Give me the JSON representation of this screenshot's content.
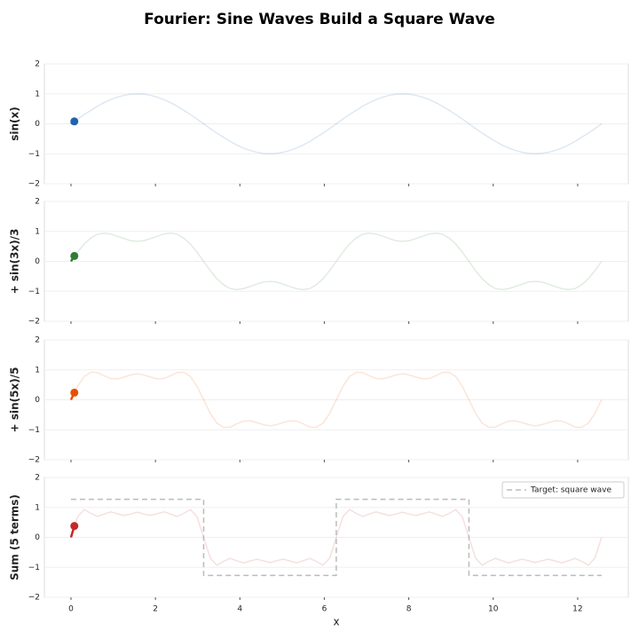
{
  "title": "Fourier: Sine Waves Build a Square Wave",
  "chart_data": [
    {
      "type": "line",
      "ylabel": "sin(x)",
      "color": "#1f63b0",
      "xlim": [
        -0.63,
        13.2
      ],
      "ylim": [
        -2,
        2
      ],
      "yticks": [
        {
          "value": -2,
          "label": "−2"
        },
        {
          "value": -1,
          "label": "−1"
        },
        0,
        1,
        2
      ],
      "grid": true,
      "x": [
        0,
        0.157,
        0.314,
        0.471,
        0.628,
        0.785,
        0.942,
        1.1,
        1.257,
        1.414,
        1.571,
        1.728,
        1.885,
        2.042,
        2.199,
        2.356,
        2.513,
        2.67,
        2.827,
        2.985,
        3.142,
        3.299,
        3.456,
        3.613,
        3.77,
        3.927,
        4.084,
        4.241,
        4.398,
        4.555,
        4.712,
        4.869,
        5.027,
        5.184,
        5.341,
        5.498,
        5.655,
        5.812,
        5.969,
        6.126,
        6.283,
        6.44,
        6.597,
        6.754,
        6.912,
        7.069,
        7.226,
        7.383,
        7.54,
        7.697,
        7.854,
        8.011,
        8.168,
        8.325,
        8.482,
        8.639,
        8.796,
        8.954,
        9.111,
        9.268,
        9.425,
        9.582,
        9.739,
        9.896,
        10.053,
        10.21,
        10.367,
        10.524,
        10.681,
        10.838,
        10.996,
        11.153,
        11.31,
        11.467,
        11.624,
        11.781,
        11.938,
        12.095,
        12.252,
        12.409,
        12.566
      ],
      "series": [
        {
          "values": [
            0,
            0.16,
            0.31,
            0.45,
            0.59,
            0.71,
            0.81,
            0.89,
            0.95,
            0.99,
            1,
            0.99,
            0.95,
            0.89,
            0.81,
            0.71,
            0.59,
            0.45,
            0.31,
            0.16,
            0,
            -0.16,
            -0.31,
            -0.45,
            -0.59,
            -0.71,
            -0.81,
            -0.89,
            -0.95,
            -0.99,
            -1,
            -0.99,
            -0.95,
            -0.89,
            -0.81,
            -0.71,
            -0.59,
            -0.45,
            -0.31,
            -0.16,
            0,
            0.16,
            0.31,
            0.45,
            0.59,
            0.71,
            0.81,
            0.89,
            0.95,
            0.99,
            1,
            0.99,
            0.95,
            0.89,
            0.81,
            0.71,
            0.59,
            0.45,
            0.31,
            0.16,
            0,
            -0.16,
            -0.31,
            -0.45,
            -0.59,
            -0.71,
            -0.81,
            -0.89,
            -0.95,
            -0.99,
            -1,
            -0.99,
            -0.95,
            -0.89,
            -0.81,
            -0.71,
            -0.59,
            -0.45,
            -0.31,
            -0.16,
            0
          ]
        }
      ],
      "highlight": {
        "x": [
          0,
          0.08
        ],
        "values": [
          0,
          0.08
        ]
      }
    },
    {
      "type": "line",
      "ylabel": "+ sin(3x)/3",
      "color": "#2e7d32",
      "xlim": [
        -0.63,
        13.2
      ],
      "ylim": [
        -2,
        2
      ],
      "yticks": [
        {
          "value": -2,
          "label": "−2"
        },
        {
          "value": -1,
          "label": "−1"
        },
        0,
        1,
        2
      ],
      "grid": true,
      "x": [
        0,
        0.157,
        0.314,
        0.471,
        0.628,
        0.785,
        0.942,
        1.1,
        1.257,
        1.414,
        1.571,
        1.728,
        1.885,
        2.042,
        2.199,
        2.356,
        2.513,
        2.67,
        2.827,
        2.985,
        3.142,
        3.299,
        3.456,
        3.613,
        3.77,
        3.927,
        4.084,
        4.241,
        4.398,
        4.555,
        4.712,
        4.869,
        5.027,
        5.184,
        5.341,
        5.498,
        5.655,
        5.812,
        5.969,
        6.126,
        6.283,
        6.44,
        6.597,
        6.754,
        6.912,
        7.069,
        7.226,
        7.383,
        7.54,
        7.697,
        7.854,
        8.011,
        8.168,
        8.325,
        8.482,
        8.639,
        8.796,
        8.954,
        9.111,
        9.268,
        9.425,
        9.582,
        9.739,
        9.896,
        10.053,
        10.21,
        10.367,
        10.524,
        10.681,
        10.838,
        10.996,
        11.153,
        11.31,
        11.467,
        11.624,
        11.781,
        11.938,
        12.095,
        12.252,
        12.409,
        12.566
      ],
      "series": [
        {
          "values": [
            0,
            0.31,
            0.58,
            0.78,
            0.91,
            0.94,
            0.91,
            0.84,
            0.76,
            0.69,
            0.67,
            0.69,
            0.76,
            0.84,
            0.91,
            0.94,
            0.91,
            0.78,
            0.58,
            0.31,
            0,
            -0.31,
            -0.58,
            -0.78,
            -0.91,
            -0.94,
            -0.91,
            -0.84,
            -0.76,
            -0.69,
            -0.67,
            -0.69,
            -0.76,
            -0.84,
            -0.91,
            -0.94,
            -0.91,
            -0.78,
            -0.58,
            -0.31,
            0,
            0.31,
            0.58,
            0.78,
            0.91,
            0.94,
            0.91,
            0.84,
            0.76,
            0.69,
            0.67,
            0.69,
            0.76,
            0.84,
            0.91,
            0.94,
            0.91,
            0.78,
            0.58,
            0.31,
            0,
            -0.31,
            -0.58,
            -0.78,
            -0.91,
            -0.94,
            -0.91,
            -0.84,
            -0.76,
            -0.69,
            -0.67,
            -0.69,
            -0.76,
            -0.84,
            -0.91,
            -0.94,
            -0.91,
            -0.78,
            -0.58,
            -0.31,
            0
          ]
        }
      ],
      "highlight": {
        "x": [
          0,
          0.08
        ],
        "values": [
          0,
          0.18
        ]
      }
    },
    {
      "type": "line",
      "ylabel": "+ sin(5x)/5",
      "color": "#e65100",
      "xlim": [
        -0.63,
        13.2
      ],
      "ylim": [
        -2,
        2
      ],
      "yticks": [
        {
          "value": -2,
          "label": "−2"
        },
        {
          "value": -1,
          "label": "−1"
        },
        0,
        1,
        2
      ],
      "grid": true,
      "x": [
        0,
        0.157,
        0.314,
        0.471,
        0.628,
        0.785,
        0.942,
        1.1,
        1.257,
        1.414,
        1.571,
        1.728,
        1.885,
        2.042,
        2.199,
        2.356,
        2.513,
        2.67,
        2.827,
        2.985,
        3.142,
        3.299,
        3.456,
        3.613,
        3.77,
        3.927,
        4.084,
        4.241,
        4.398,
        4.555,
        4.712,
        4.869,
        5.027,
        5.184,
        5.341,
        5.498,
        5.655,
        5.812,
        5.969,
        6.126,
        6.283,
        6.44,
        6.597,
        6.754,
        6.912,
        7.069,
        7.226,
        7.383,
        7.54,
        7.697,
        7.854,
        8.011,
        8.168,
        8.325,
        8.482,
        8.639,
        8.796,
        8.954,
        9.111,
        9.268,
        9.425,
        9.582,
        9.739,
        9.896,
        10.053,
        10.21,
        10.367,
        10.524,
        10.681,
        10.838,
        10.996,
        11.153,
        11.31,
        11.467,
        11.624,
        11.781,
        11.938,
        12.095,
        12.252,
        12.409,
        12.566
      ],
      "series": [
        {
          "values": [
            0,
            0.45,
            0.78,
            0.92,
            0.91,
            0.8,
            0.71,
            0.7,
            0.76,
            0.83,
            0.87,
            0.83,
            0.76,
            0.7,
            0.71,
            0.8,
            0.91,
            0.92,
            0.78,
            0.45,
            0,
            -0.45,
            -0.78,
            -0.92,
            -0.91,
            -0.8,
            -0.71,
            -0.7,
            -0.76,
            -0.83,
            -0.87,
            -0.83,
            -0.76,
            -0.7,
            -0.71,
            -0.8,
            -0.91,
            -0.92,
            -0.78,
            -0.45,
            0,
            0.45,
            0.78,
            0.92,
            0.91,
            0.8,
            0.71,
            0.7,
            0.76,
            0.83,
            0.87,
            0.83,
            0.76,
            0.7,
            0.71,
            0.8,
            0.91,
            0.92,
            0.78,
            0.45,
            0,
            -0.45,
            -0.78,
            -0.92,
            -0.91,
            -0.8,
            -0.71,
            -0.7,
            -0.76,
            -0.83,
            -0.87,
            -0.83,
            -0.76,
            -0.7,
            -0.71,
            -0.8,
            -0.91,
            -0.92,
            -0.78,
            -0.45,
            0
          ]
        }
      ],
      "highlight": {
        "x": [
          0,
          0.08
        ],
        "values": [
          0,
          0.24
        ]
      }
    },
    {
      "type": "line",
      "ylabel": "Sum (5 terms)",
      "xlabel": "x",
      "color": "#c62828",
      "xlim": [
        -0.63,
        13.2
      ],
      "ylim": [
        -2,
        2
      ],
      "yticks": [
        {
          "value": -2,
          "label": "−2"
        },
        {
          "value": -1,
          "label": "−1"
        },
        0,
        1,
        2
      ],
      "grid": true,
      "xticks": [
        0,
        2,
        4,
        6,
        8,
        10,
        12
      ],
      "legend": "upper right",
      "x": [
        0,
        0.157,
        0.314,
        0.471,
        0.628,
        0.785,
        0.942,
        1.1,
        1.257,
        1.414,
        1.571,
        1.728,
        1.885,
        2.042,
        2.199,
        2.356,
        2.513,
        2.67,
        2.827,
        2.985,
        3.142,
        3.299,
        3.456,
        3.613,
        3.77,
        3.927,
        4.084,
        4.241,
        4.398,
        4.555,
        4.712,
        4.869,
        5.027,
        5.184,
        5.341,
        5.498,
        5.655,
        5.812,
        5.969,
        6.126,
        6.283,
        6.44,
        6.597,
        6.754,
        6.912,
        7.069,
        7.226,
        7.383,
        7.54,
        7.697,
        7.854,
        8.011,
        8.168,
        8.325,
        8.482,
        8.639,
        8.796,
        8.954,
        9.111,
        9.268,
        9.425,
        9.582,
        9.739,
        9.896,
        10.053,
        10.21,
        10.367,
        10.524,
        10.681,
        10.838,
        10.996,
        11.153,
        11.31,
        11.467,
        11.624,
        11.781,
        11.938,
        12.095,
        12.252,
        12.409,
        12.566
      ],
      "series": [
        {
          "values": [
            0,
            0.69,
            0.93,
            0.8,
            0.7,
            0.78,
            0.85,
            0.79,
            0.73,
            0.78,
            0.84,
            0.78,
            0.73,
            0.79,
            0.85,
            0.78,
            0.7,
            0.8,
            0.93,
            0.69,
            0,
            -0.69,
            -0.93,
            -0.8,
            -0.7,
            -0.78,
            -0.85,
            -0.79,
            -0.73,
            -0.78,
            -0.84,
            -0.78,
            -0.73,
            -0.79,
            -0.85,
            -0.78,
            -0.7,
            -0.8,
            -0.93,
            -0.69,
            0,
            0.69,
            0.93,
            0.8,
            0.7,
            0.78,
            0.85,
            0.79,
            0.73,
            0.78,
            0.84,
            0.78,
            0.73,
            0.79,
            0.85,
            0.78,
            0.7,
            0.8,
            0.93,
            0.69,
            0,
            -0.69,
            -0.93,
            -0.8,
            -0.7,
            -0.78,
            -0.85,
            -0.79,
            -0.73,
            -0.78,
            -0.84,
            -0.78,
            -0.73,
            -0.79,
            -0.85,
            -0.78,
            -0.7,
            -0.8,
            -0.93,
            -0.69,
            0
          ]
        },
        {
          "name": "Target: square wave",
          "color": "#bbbbbb",
          "style": "dashed",
          "x": [
            0,
            3.142,
            3.142,
            6.283,
            6.283,
            9.425,
            9.425,
            12.566
          ],
          "values": [
            1.27,
            1.27,
            -1.27,
            -1.27,
            1.27,
            1.27,
            -1.27,
            -1.27
          ]
        }
      ],
      "highlight": {
        "x": [
          0,
          0.08
        ],
        "values": [
          0,
          0.38
        ]
      }
    }
  ]
}
